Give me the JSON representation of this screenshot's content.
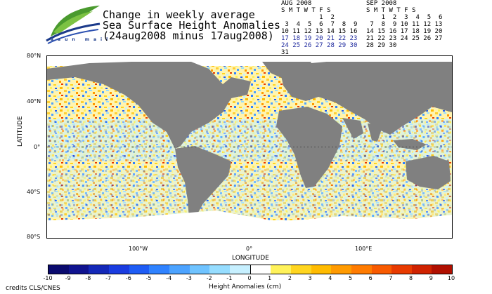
{
  "title_lines": [
    "Change in weekly average",
    "Sea Surface Height Anomalies",
    "(24aug2008 minus 17aug2008)"
  ],
  "logo_text": "aaun mail",
  "calendar_aug": {
    "title": "AUG 2008",
    "header": "S M T W T F S",
    "rows": [
      "          1  2",
      " 3  4  5  6  7  8  9",
      "10 11 12 13 14 15 16",
      "17 18 19 20 21 22 23",
      "24 25 26 27 28 29 30",
      "31"
    ]
  },
  "calendar_sep": {
    "title": "SEP 2008",
    "header": "S M T W T F S",
    "rows": [
      "    1  2  3  4  5  6",
      " 7  8  9 10 11 12 13",
      "14 15 16 17 18 19 20",
      "21 22 23 24 25 26 27",
      "28 29 30"
    ]
  },
  "axes": {
    "ylabel": "LATITUDE",
    "xlabel": "LONGITUDE",
    "yticks": [
      "80°N",
      "40°N",
      "0°",
      "40°S",
      "80°S"
    ],
    "xticks": [
      "100°W",
      "0°",
      "100°E"
    ]
  },
  "colorbar": {
    "label": "Height Anomalies (cm)",
    "ticks": [
      "-10",
      "-9",
      "-8",
      "-7",
      "-6",
      "-5",
      "-4",
      "-3",
      "-2",
      "-1",
      "0",
      "1",
      "2",
      "3",
      "4",
      "5",
      "6",
      "7",
      "8",
      "9",
      "10"
    ],
    "colors": [
      "#0a0a6e",
      "#10138f",
      "#1428b8",
      "#1a3ce0",
      "#1e5cf5",
      "#2f82ff",
      "#4ca3ff",
      "#6fc3ff",
      "#96ddff",
      "#c7f0ff",
      "#ffffff",
      "#fff25a",
      "#ffd51f",
      "#ffbb00",
      "#ff9a00",
      "#ff7b00",
      "#f85a00",
      "#e83a00",
      "#cf2200",
      "#b00f00"
    ]
  },
  "credits": "credits CLS/CNES",
  "colors": {
    "land": "#808080",
    "frame": "#000000"
  }
}
